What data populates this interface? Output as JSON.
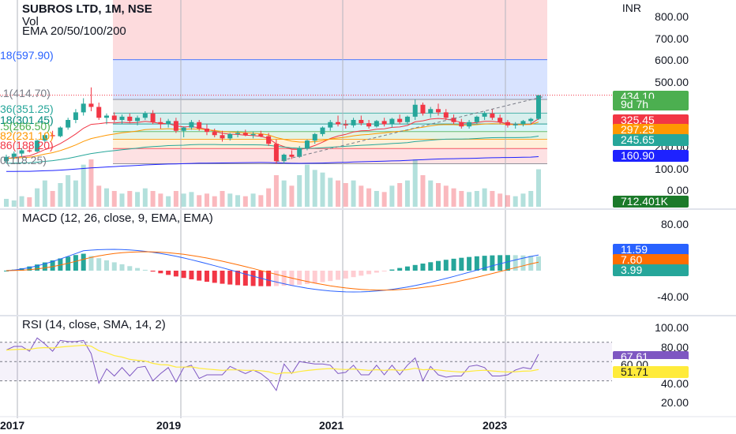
{
  "header": {
    "title": "SUBROS LTD, 1M, NSE",
    "vol": "Vol",
    "ema": "EMA 20/50/100/200"
  },
  "currency": "INR",
  "price_axis": [
    "800.00",
    "700.00",
    "600.00",
    "500.00",
    "200.00",
    "100.00",
    "0.00"
  ],
  "price_tags": [
    {
      "label": "434.10",
      "color": "#4caf50",
      "text": "#ffffff"
    },
    {
      "label": "9d 7h",
      "color": "#4caf50",
      "text": "#ffffff"
    },
    {
      "label": "325.45",
      "color": "#f23645",
      "text": "#ffffff"
    },
    {
      "label": "297.25",
      "color": "#ff9800",
      "text": "#ffffff"
    },
    {
      "label": "245.65",
      "color": "#26a69a",
      "text": "#ffffff"
    },
    {
      "label": "160.90",
      "color": "#1e22ff",
      "text": "#ffffff"
    },
    {
      "label": "712.401K",
      "color": "#1b7a2a",
      "text": "#ffffff"
    }
  ],
  "fib_levels": [
    {
      "label": "18(597.90)",
      "color": "#2962ff"
    },
    {
      "label": ".1(414.70)",
      "color": "#787b86"
    },
    {
      "label": "36(351.25)",
      "color": "#26a69a"
    },
    {
      "label": "18(301.45)",
      "color": "#00897b"
    },
    {
      "label": ".5(266.50)",
      "color": "#4caf50"
    },
    {
      "label": "82(231.10)",
      "color": "#ff9800"
    },
    {
      "label": "86(188.20)",
      "color": "#f23645"
    },
    {
      "label": "0(118.25)",
      "color": "#787b86"
    }
  ],
  "macd": {
    "title": "MACD (12, 26, close, 9, EMA, EMA)",
    "axis": [
      "80.00",
      "-40.00"
    ],
    "tags": [
      {
        "label": "11.59",
        "color": "#2962ff",
        "text": "#ffffff"
      },
      {
        "label": "7.60",
        "color": "#ff6d00",
        "text": "#ffffff"
      },
      {
        "label": "3.99",
        "color": "#26a69a",
        "text": "#ffffff"
      }
    ]
  },
  "rsi": {
    "title": "RSI (14, close, SMA, 14, 2)",
    "axis": [
      "100.00",
      "80.00",
      "40.00",
      "20.00"
    ],
    "tags": [
      {
        "label": "67.61",
        "color": "#7e57c2",
        "text": "#ffffff"
      },
      {
        "label": "60.00",
        "color": "#ffffff",
        "text": "#131722"
      },
      {
        "label": "51.71",
        "color": "#ffeb3b",
        "text": "#131722"
      }
    ]
  },
  "x_axis": [
    "2017",
    "2019",
    "2021",
    "2023"
  ],
  "chart_data": {
    "type": "candlestick",
    "interval": "1M",
    "x_start": "2016-06",
    "ohlc": [
      [
        130,
        160,
        120,
        150
      ],
      [
        150,
        175,
        140,
        165
      ],
      [
        165,
        190,
        150,
        180
      ],
      [
        180,
        200,
        170,
        175
      ],
      [
        175,
        230,
        170,
        225
      ],
      [
        225,
        260,
        215,
        250
      ],
      [
        250,
        270,
        235,
        245
      ],
      [
        245,
        290,
        240,
        285
      ],
      [
        285,
        330,
        275,
        320
      ],
      [
        320,
        370,
        305,
        355
      ],
      [
        355,
        420,
        340,
        395
      ],
      [
        395,
        470,
        360,
        380
      ],
      [
        380,
        400,
        320,
        330
      ],
      [
        330,
        350,
        300,
        340
      ],
      [
        340,
        355,
        310,
        320
      ],
      [
        320,
        345,
        300,
        335
      ],
      [
        335,
        350,
        305,
        315
      ],
      [
        315,
        340,
        295,
        330
      ],
      [
        330,
        360,
        320,
        350
      ],
      [
        350,
        365,
        300,
        310
      ],
      [
        310,
        330,
        280,
        300
      ],
      [
        300,
        325,
        285,
        315
      ],
      [
        315,
        330,
        260,
        270
      ],
      [
        270,
        290,
        240,
        285
      ],
      [
        285,
        320,
        275,
        310
      ],
      [
        310,
        320,
        270,
        280
      ],
      [
        280,
        300,
        250,
        265
      ],
      [
        265,
        280,
        240,
        250
      ],
      [
        250,
        270,
        220,
        235
      ],
      [
        235,
        260,
        225,
        255
      ],
      [
        255,
        270,
        240,
        260
      ],
      [
        260,
        275,
        245,
        250
      ],
      [
        250,
        265,
        235,
        255
      ],
      [
        255,
        270,
        240,
        245
      ],
      [
        245,
        260,
        200,
        210
      ],
      [
        210,
        230,
        118,
        130
      ],
      [
        130,
        165,
        120,
        160
      ],
      [
        160,
        180,
        140,
        150
      ],
      [
        150,
        200,
        145,
        190
      ],
      [
        190,
        230,
        180,
        225
      ],
      [
        225,
        260,
        210,
        255
      ],
      [
        255,
        290,
        245,
        285
      ],
      [
        285,
        320,
        270,
        310
      ],
      [
        310,
        340,
        290,
        300
      ],
      [
        300,
        320,
        280,
        295
      ],
      [
        295,
        330,
        285,
        320
      ],
      [
        320,
        340,
        295,
        305
      ],
      [
        305,
        320,
        280,
        290
      ],
      [
        290,
        320,
        285,
        315
      ],
      [
        315,
        330,
        290,
        300
      ],
      [
        300,
        330,
        285,
        325
      ],
      [
        325,
        345,
        300,
        310
      ],
      [
        310,
        340,
        300,
        335
      ],
      [
        335,
        415,
        320,
        390
      ],
      [
        390,
        400,
        340,
        350
      ],
      [
        350,
        380,
        330,
        370
      ],
      [
        370,
        395,
        340,
        355
      ],
      [
        355,
        370,
        320,
        330
      ],
      [
        330,
        345,
        300,
        310
      ],
      [
        310,
        325,
        280,
        290
      ],
      [
        290,
        320,
        280,
        310
      ],
      [
        310,
        340,
        300,
        335
      ],
      [
        335,
        360,
        320,
        350
      ],
      [
        350,
        370,
        320,
        330
      ],
      [
        330,
        345,
        300,
        310
      ],
      [
        310,
        320,
        285,
        295
      ],
      [
        295,
        310,
        280,
        300
      ],
      [
        300,
        320,
        290,
        315
      ],
      [
        315,
        330,
        300,
        325
      ],
      [
        325,
        434,
        320,
        434
      ]
    ],
    "volume_k": [
      150,
      120,
      200,
      180,
      350,
      500,
      300,
      450,
      600,
      500,
      800,
      900,
      400,
      350,
      300,
      250,
      300,
      280,
      350,
      300,
      250,
      200,
      300,
      250,
      280,
      220,
      250,
      200,
      300,
      250,
      220,
      200,
      250,
      220,
      350,
      600,
      500,
      400,
      600,
      800,
      700,
      650,
      550,
      500,
      450,
      500,
      400,
      350,
      300,
      280,
      400,
      450,
      500,
      900,
      600,
      500,
      450,
      400,
      350,
      300,
      280,
      300,
      350,
      300,
      250,
      220,
      200,
      250,
      300,
      712.401
    ],
    "ema": [
      {
        "name": "EMA 20",
        "color": "#f23645",
        "last": 325.45
      },
      {
        "name": "EMA 50",
        "color": "#ff9800",
        "last": 297.25
      },
      {
        "name": "EMA 100",
        "color": "#26a69a",
        "last": 245.65
      },
      {
        "name": "EMA 200",
        "color": "#1e22ff",
        "last": 160.9
      }
    ],
    "macd_last": {
      "macd": 11.59,
      "signal": 7.6,
      "histogram": 3.99
    },
    "rsi_last": {
      "rsi": 67.61,
      "sma": 51.71
    },
    "rsi_bands": [
      40,
      60,
      80
    ]
  }
}
